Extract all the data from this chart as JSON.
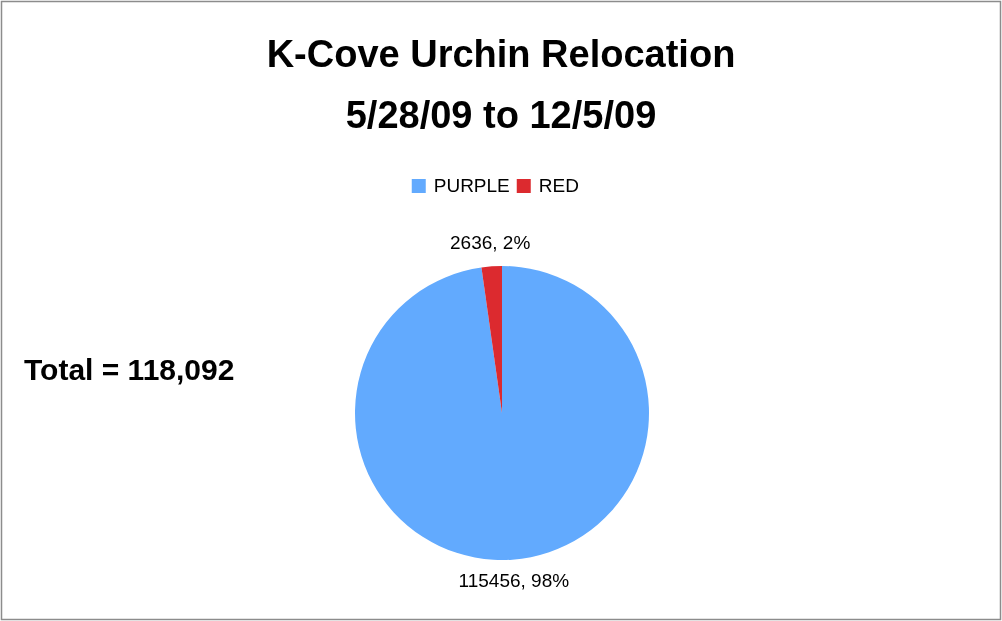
{
  "chart_data": {
    "type": "pie",
    "title": "K-Cove Urchin Relocation\n5/28/09 to 12/5/09",
    "categories": [
      "PURPLE",
      "RED"
    ],
    "values": [
      115456,
      2636
    ],
    "colors": [
      "#62aafe",
      "#dc2a2f"
    ],
    "value_labels": [
      "115456, 98%",
      "2636, 2%"
    ],
    "legend": "top",
    "annotations": [
      "Total = 118,092"
    ]
  }
}
